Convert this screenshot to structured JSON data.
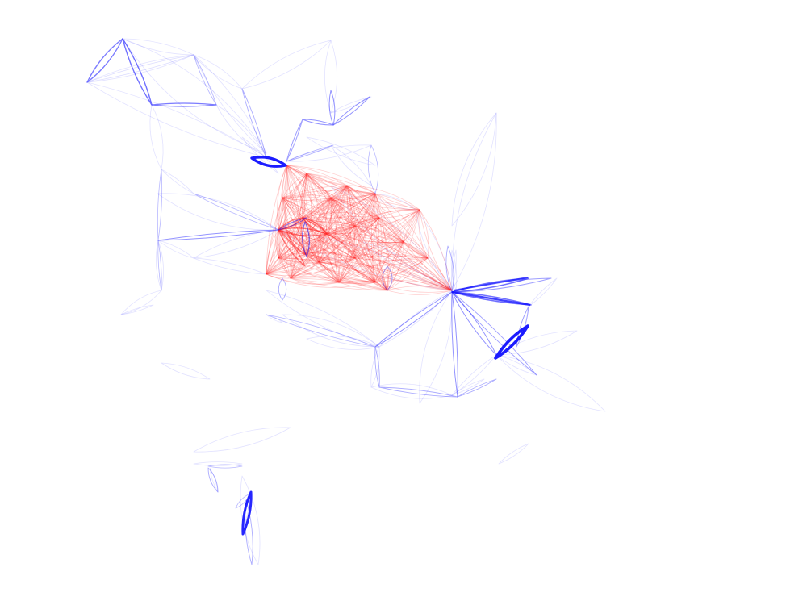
{
  "graph": {
    "colors": {
      "background": "#ffffff",
      "inter_group_edge": "#1010ff",
      "intra_group_edge": "#ff2020"
    },
    "edge_style": "curved bundled lens-shaped edges",
    "has_text_labels": false,
    "has_legend": false
  }
}
